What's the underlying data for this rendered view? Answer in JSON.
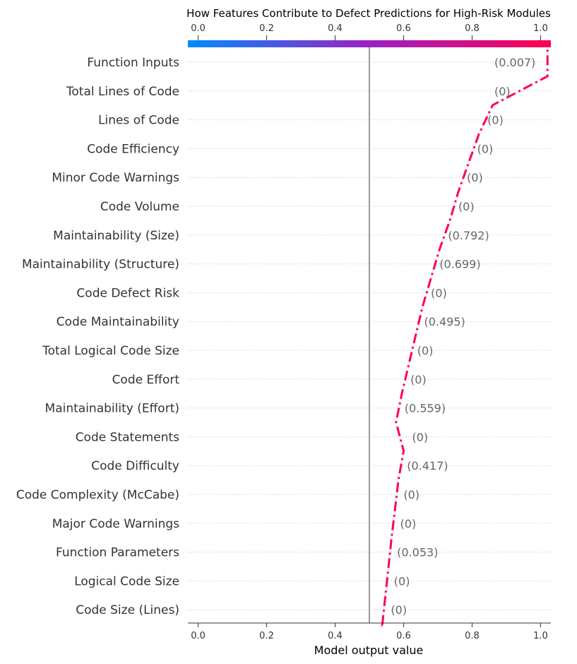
{
  "chart_data": {
    "type": "line",
    "title": "How Features Contribute to Defect Predictions for High-Risk Modules",
    "xlabel": "Model output value",
    "xlim": [
      -0.03,
      1.03
    ],
    "xticks": [
      0.0,
      0.2,
      0.4,
      0.6,
      0.8,
      1.0
    ],
    "xtick_labels": [
      "0.0",
      "0.2",
      "0.4",
      "0.6",
      "0.8",
      "1.0"
    ],
    "base_value": 0.5,
    "colorbar": {
      "range": [
        0.0,
        1.0
      ],
      "low_color": "#008bfb",
      "mid_color": "#9b20c4",
      "high_color": "#ff0051"
    },
    "line_color": "#ff0051",
    "line_style": "dash-dot",
    "grid": "dotted horizontal",
    "features": [
      "Function Inputs",
      "Total Lines of Code",
      "Lines of Code",
      "Code Efficiency",
      "Minor Code Warnings",
      "Code Volume",
      "Maintainability (Size)",
      "Maintainability (Structure)",
      "Code Defect Risk",
      "Code Maintainability",
      "Total Logical Code Size",
      "Code Effort",
      "Maintainability (Effort)",
      "Code Statements",
      "Code Difficulty",
      "Code Complexity (McCabe)",
      "Major Code Warnings",
      "Function Parameters",
      "Logical Code Size",
      "Code Size (Lines)"
    ],
    "feature_values": [
      "(0.007)",
      "(0)",
      "(0)",
      "(0)",
      "(0)",
      "(0)",
      "(0.792)",
      "(0.699)",
      "(0)",
      "(0.495)",
      "(0)",
      "(0)",
      "(0.559)",
      "(0)",
      "(0.417)",
      "(0)",
      "(0)",
      "(0.053)",
      "(0)",
      "(0)"
    ],
    "output_values": [
      1.02,
      0.86,
      0.82,
      0.79,
      0.76,
      0.735,
      0.705,
      0.68,
      0.655,
      0.635,
      0.615,
      0.595,
      0.578,
      0.6,
      0.585,
      0.575,
      0.565,
      0.556,
      0.547,
      0.538
    ],
    "start_value": 0.54
  }
}
